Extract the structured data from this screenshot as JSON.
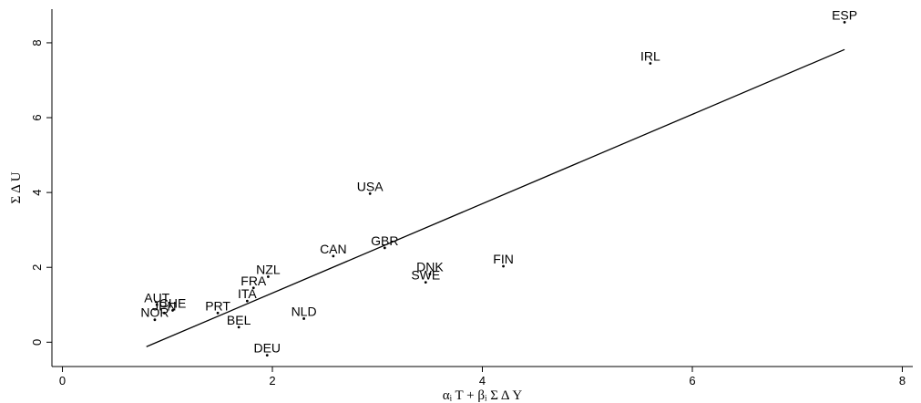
{
  "chart_data": {
    "type": "scatter",
    "title": "",
    "xlabel": "αᵢ T + βᵢ Σ Δ Y",
    "ylabel": "Σ Δ U",
    "xlim": [
      -0.1,
      8.1
    ],
    "ylim": [
      -0.65,
      8.9
    ],
    "xticks": [
      0,
      2,
      4,
      6,
      8
    ],
    "yticks": [
      0,
      2,
      4,
      6,
      8
    ],
    "grid": false,
    "points": [
      {
        "label": "ESP",
        "x": 7.45,
        "y": 8.55
      },
      {
        "label": "IRL",
        "x": 5.6,
        "y": 7.45
      },
      {
        "label": "USA",
        "x": 2.93,
        "y": 3.97
      },
      {
        "label": "GBR",
        "x": 3.07,
        "y": 2.52
      },
      {
        "label": "CAN",
        "x": 2.58,
        "y": 2.3
      },
      {
        "label": "FIN",
        "x": 4.2,
        "y": 2.03
      },
      {
        "label": "DNK",
        "x": 3.5,
        "y": 1.82
      },
      {
        "label": "SWE",
        "x": 3.46,
        "y": 1.6
      },
      {
        "label": "NZL",
        "x": 1.96,
        "y": 1.75
      },
      {
        "label": "FRA",
        "x": 1.82,
        "y": 1.45
      },
      {
        "label": "ITA",
        "x": 1.76,
        "y": 1.1
      },
      {
        "label": "NLD",
        "x": 2.3,
        "y": 0.63
      },
      {
        "label": "PRT",
        "x": 1.48,
        "y": 0.78
      },
      {
        "label": "BEL",
        "x": 1.68,
        "y": 0.4
      },
      {
        "label": "DEU",
        "x": 1.95,
        "y": -0.35
      },
      {
        "label": "AUT",
        "x": 0.9,
        "y": 1.0
      },
      {
        "label": "CHE",
        "x": 1.05,
        "y": 0.85
      },
      {
        "label": "JPN",
        "x": 0.97,
        "y": 0.78
      },
      {
        "label": "NOR",
        "x": 0.88,
        "y": 0.6
      }
    ],
    "fit_line": {
      "x": [
        0.8,
        7.45
      ],
      "y": [
        -0.12,
        7.82
      ]
    }
  }
}
